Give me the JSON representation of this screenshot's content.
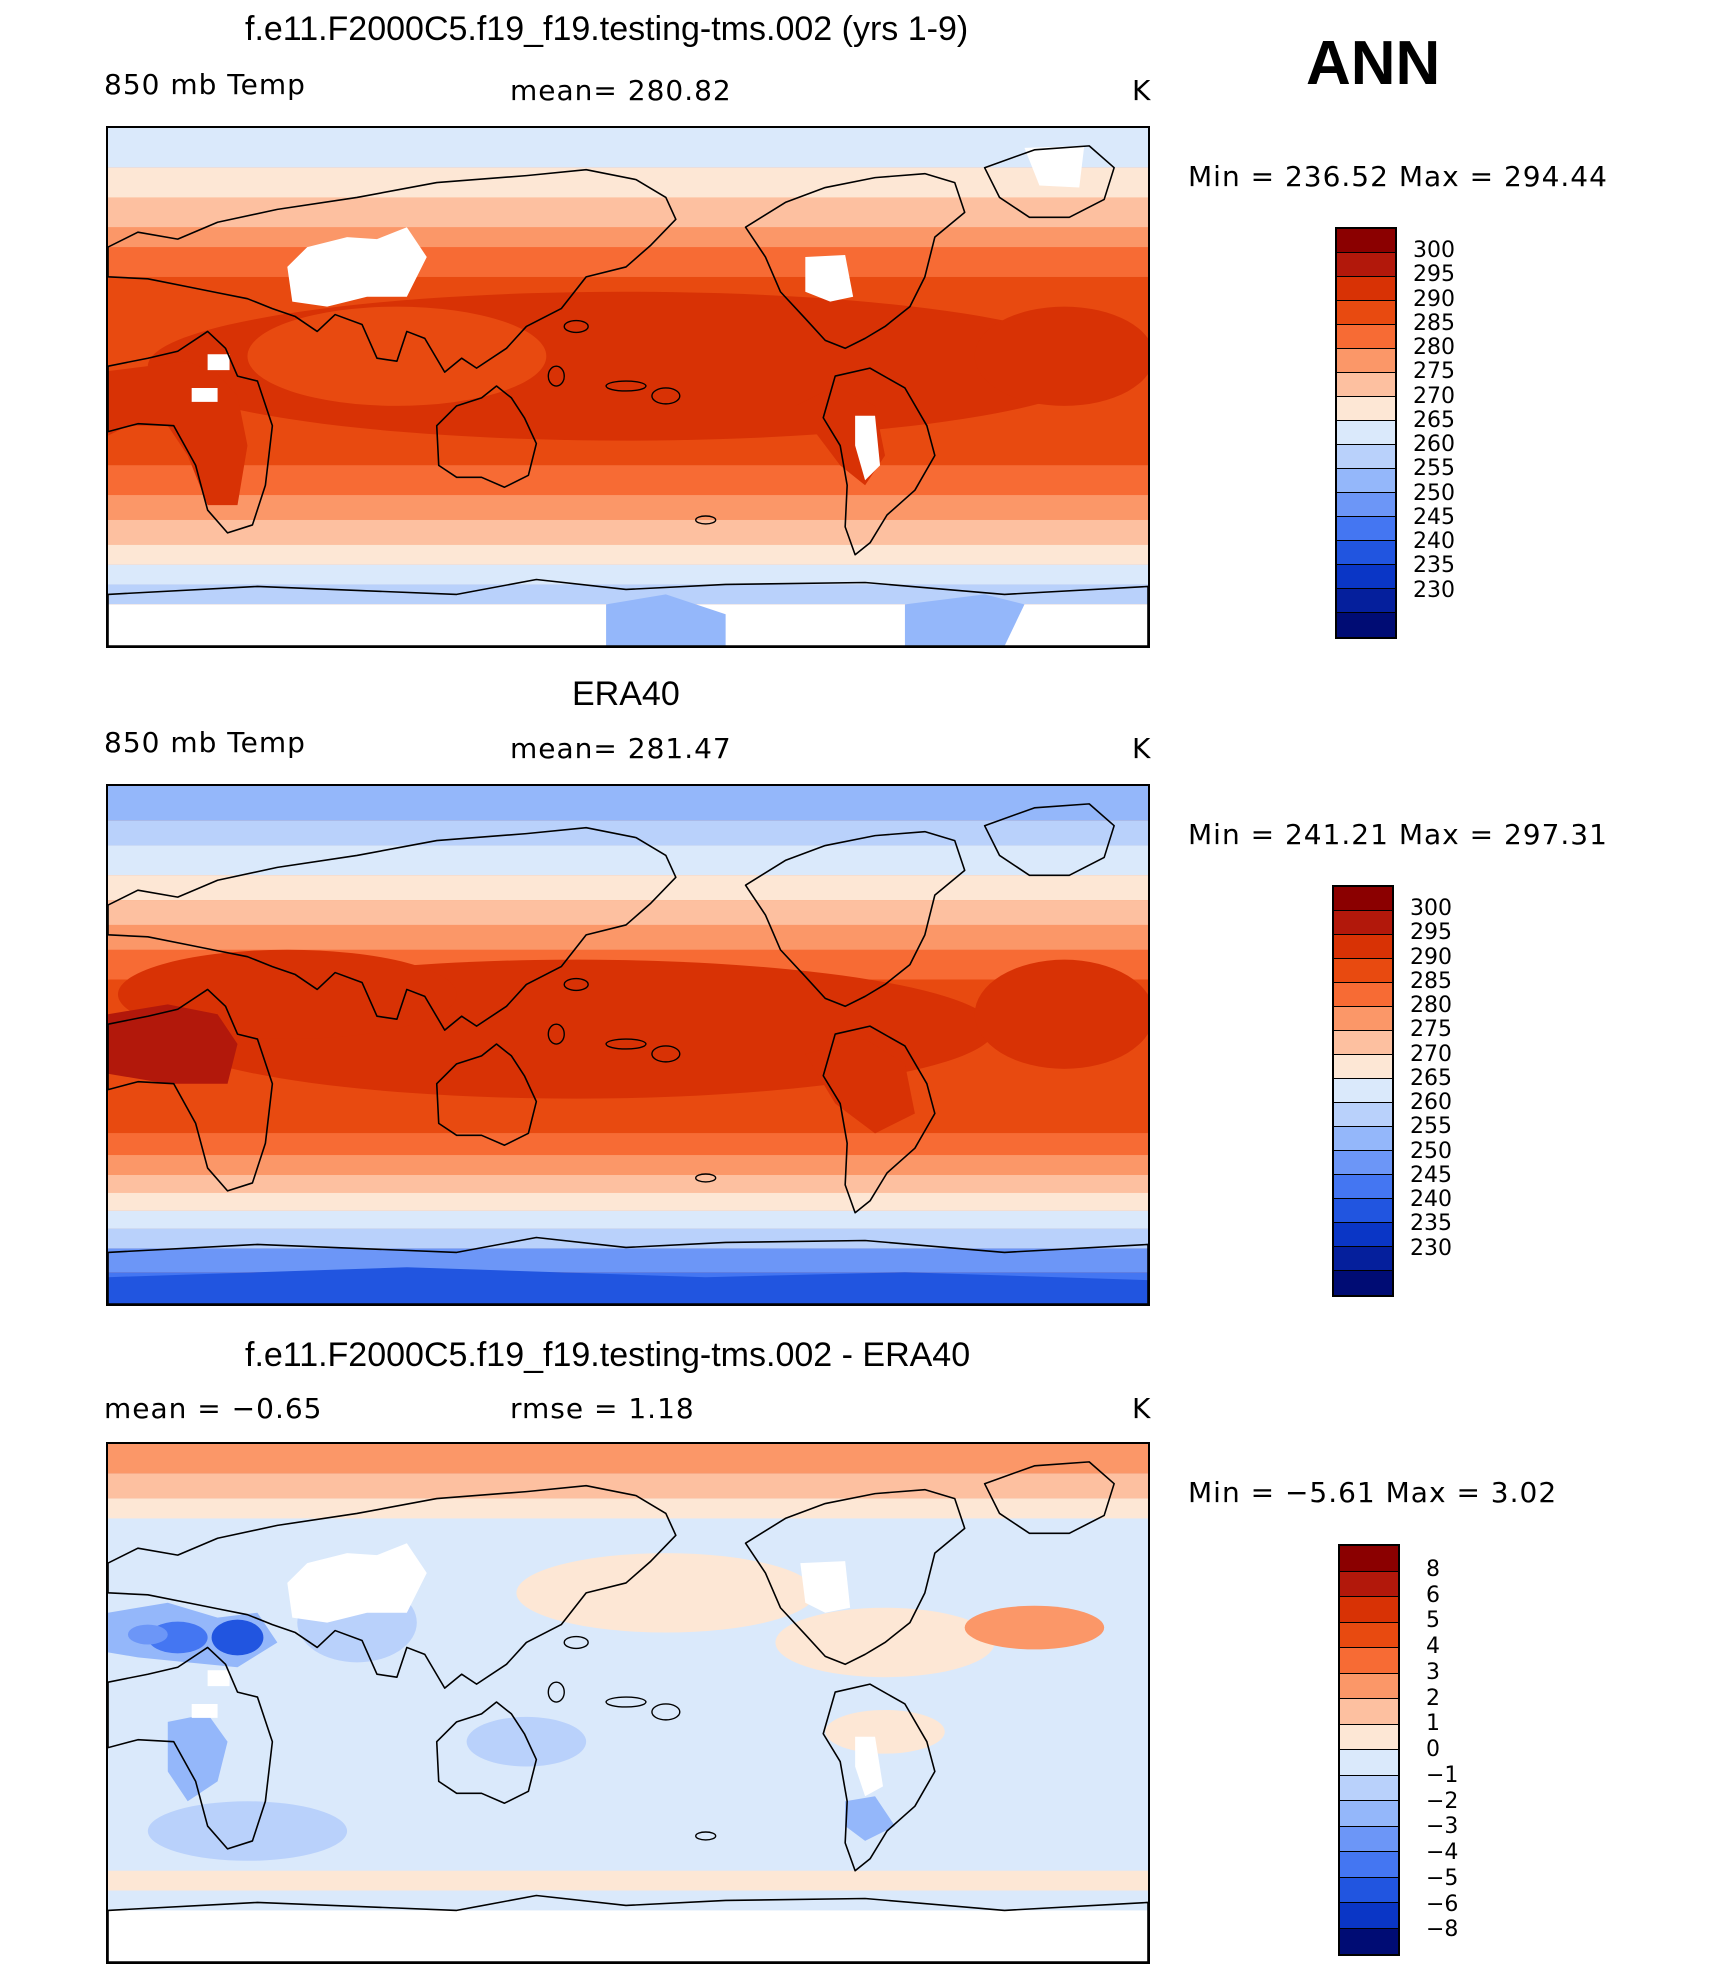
{
  "season": "ANN",
  "panels": [
    {
      "title": "f.e11.F2000C5.f19_f19.testing-tms.002 (yrs 1-9)",
      "left": "850 mb Temp",
      "center": "mean=  280.82",
      "unit": "K",
      "minmax": "Min  =  236.52  Max  =  294.44",
      "map_kind": "model"
    },
    {
      "title": "ERA40",
      "left": "850 mb Temp",
      "center": "mean=  281.47",
      "unit": "K",
      "minmax": "Min  =  241.21  Max  =  297.31",
      "map_kind": "obs"
    },
    {
      "title": "f.e11.F2000C5.f19_f19.testing-tms.002 - ERA40",
      "left": "mean  =     −0.65",
      "center": "rmse  =     1.18",
      "unit": "K",
      "minmax": "Min  =    −5.61  Max  =     3.02",
      "map_kind": "diff"
    }
  ],
  "colorbar_temp": {
    "labels": [
      "300",
      "295",
      "290",
      "285",
      "280",
      "275",
      "270",
      "265",
      "260",
      "255",
      "250",
      "245",
      "240",
      "235",
      "230"
    ],
    "colors": [
      "#8b0000",
      "#b2180b",
      "#d83205",
      "#e84a10",
      "#f76b34",
      "#fb9768",
      "#fdc0a0",
      "#fde7d5",
      "#dae9fb",
      "#b9d1fb",
      "#94b7fa",
      "#6c96f7",
      "#4476f2",
      "#2155e0",
      "#0a36c6",
      "#051f9c",
      "#000c74"
    ]
  },
  "colorbar_diff": {
    "labels": [
      "8",
      "6",
      "5",
      "4",
      "3",
      "2",
      "1",
      "0",
      "−1",
      "−2",
      "−3",
      "−4",
      "−5",
      "−6",
      "−8"
    ],
    "colors": [
      "#8b0000",
      "#b2180b",
      "#d83205",
      "#e84a10",
      "#f76b34",
      "#fb9768",
      "#fdc0a0",
      "#fde7d5",
      "#dae9fb",
      "#b9d1fb",
      "#94b7fa",
      "#6c96f7",
      "#4476f2",
      "#2155e0",
      "#0a36c6",
      "#000c74"
    ]
  }
}
